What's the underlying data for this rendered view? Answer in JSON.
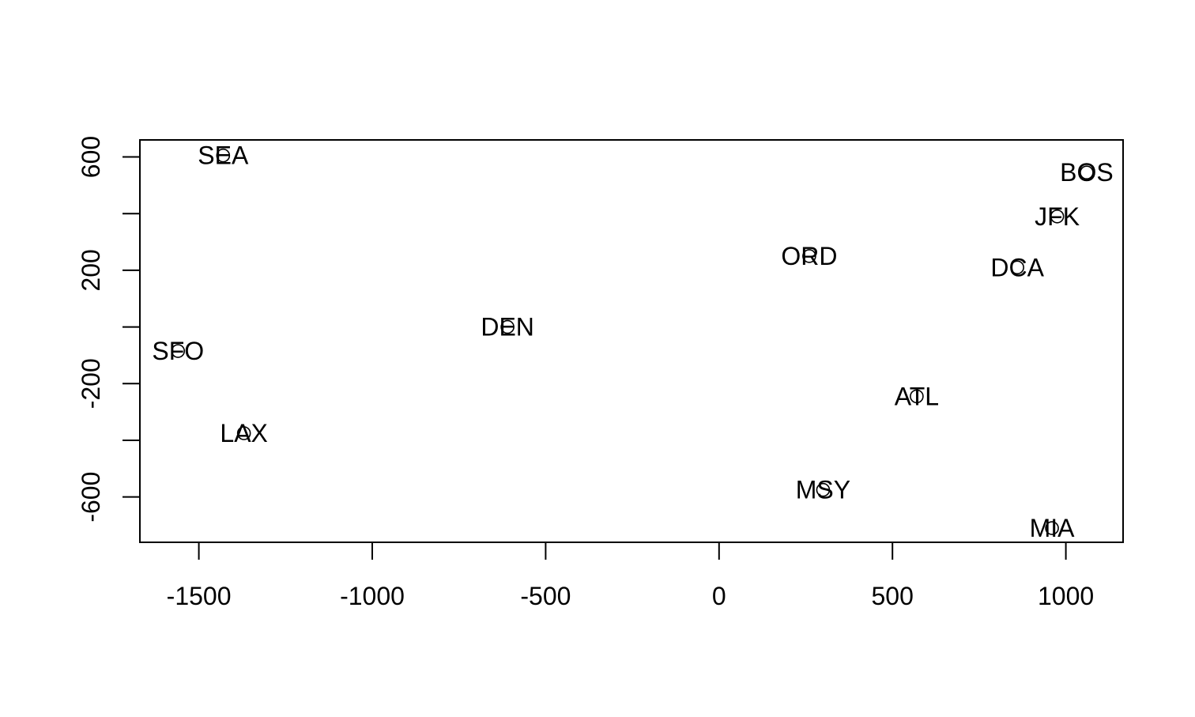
{
  "chart_data": {
    "type": "scatter",
    "title": "",
    "xlabel": "",
    "ylabel": "",
    "xlim": [
      -1670,
      1165
    ],
    "ylim": [
      -760,
      660
    ],
    "x_ticks": [
      -1500,
      -1000,
      -500,
      0,
      500,
      1000
    ],
    "x_tick_labels": [
      "-1500",
      "-1000",
      "-500",
      "0",
      "500",
      "1000"
    ],
    "y_ticks": [
      -600,
      -400,
      -200,
      0,
      200,
      400,
      600
    ],
    "y_labeled_ticks": [
      -600,
      -200,
      200,
      600
    ],
    "y_tick_labels": [
      "-600",
      "-200",
      "200",
      "600"
    ],
    "grid": false,
    "legend": "none",
    "marker": "open-circle",
    "points": [
      {
        "label": "SEA",
        "x": -1430,
        "y": 605
      },
      {
        "label": "BOS",
        "x": 1060,
        "y": 545
      },
      {
        "label": "JFK",
        "x": 975,
        "y": 390
      },
      {
        "label": "ORD",
        "x": 260,
        "y": 250
      },
      {
        "label": "DCA",
        "x": 860,
        "y": 210
      },
      {
        "label": "DEN",
        "x": -610,
        "y": 0
      },
      {
        "label": "SFO",
        "x": -1560,
        "y": -85
      },
      {
        "label": "ATL",
        "x": 570,
        "y": -245
      },
      {
        "label": "LAX",
        "x": -1370,
        "y": -375
      },
      {
        "label": "MSY",
        "x": 300,
        "y": -575
      },
      {
        "label": "MIA",
        "x": 960,
        "y": -710
      }
    ]
  }
}
